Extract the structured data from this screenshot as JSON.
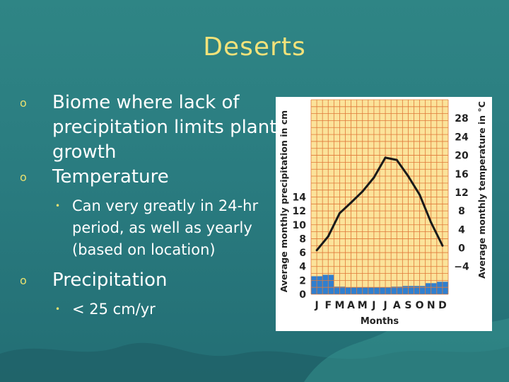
{
  "slide": {
    "title": "Deserts",
    "bullets": [
      {
        "level": 1,
        "text": "Biome where lack of precipitation limits plant growth"
      },
      {
        "level": 1,
        "text": "Temperature"
      },
      {
        "level": 2,
        "text": "Can very greatly in 24-hr period, as well as yearly (based on location)"
      },
      {
        "level": 1,
        "text": "Precipitation"
      },
      {
        "level": 2,
        "text": "< 25 cm/yr"
      }
    ],
    "bullet_glyphs": {
      "level1": "o",
      "level2": "•"
    }
  },
  "chart_data": {
    "type": "bar",
    "categories": [
      "J",
      "F",
      "M",
      "A",
      "M",
      "J",
      "J",
      "A",
      "S",
      "O",
      "N",
      "D"
    ],
    "xlabel": "Months",
    "ylabel_left": "Average monthly precipitation in cm",
    "ylabel_right": "Average monthly temperature in °C",
    "precip_ticks": [
      "0",
      "2",
      "4",
      "6",
      "8",
      "10",
      "12",
      "14"
    ],
    "temp_ticks": [
      "−4",
      "0",
      "4",
      "8",
      "12",
      "16",
      "20",
      "24",
      "28"
    ],
    "precip_ylim": [
      0,
      14
    ],
    "temp_ylim": [
      -4,
      28
    ],
    "series": [
      {
        "kind": "bar",
        "values": [
          2.6,
          2.8,
          1.1,
          1.0,
          1.0,
          1.0,
          1.0,
          1.1,
          1.2,
          1.2,
          1.6,
          1.8
        ]
      },
      {
        "kind": "line",
        "values": [
          -0.5,
          2.5,
          7.5,
          9.8,
          12.2,
          15.2,
          19.5,
          19.0,
          15.5,
          11.5,
          5.5,
          0.5
        ]
      }
    ],
    "colors": {
      "grid_bg": "#fbe39a",
      "grid_line": "#e07a3a",
      "bar": "#2f7fd0",
      "line": "#1a1a1a"
    }
  }
}
